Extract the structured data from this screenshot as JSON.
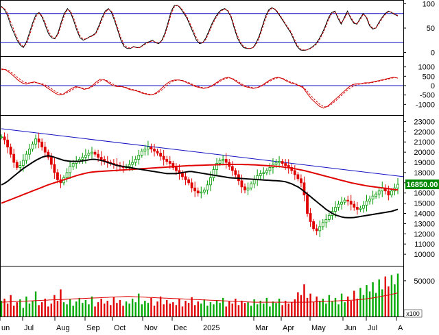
{
  "chart_data": [
    {
      "type": "line",
      "panel": "stochastic-oscillator",
      "ylim": [
        -5,
        105
      ],
      "ticks": [
        "0",
        "50",
        "100"
      ],
      "guide_levels": [
        20,
        80
      ],
      "series": [
        {
          "style": "solid",
          "color": "#000000",
          "values": [
            95,
            88,
            75,
            55,
            40,
            25,
            15,
            10,
            22,
            42,
            62,
            78,
            82,
            72,
            55,
            38,
            30,
            28,
            40,
            62,
            80,
            90,
            82,
            65,
            45,
            30,
            25,
            28,
            32,
            35,
            40,
            55,
            72,
            85,
            90,
            82,
            65,
            45,
            25,
            12,
            8,
            8,
            12,
            10,
            10,
            15,
            20,
            22,
            25,
            20,
            18,
            25,
            40,
            62,
            85,
            97,
            97,
            90,
            80,
            70,
            55,
            40,
            25,
            18,
            20,
            30,
            45,
            60,
            72,
            82,
            88,
            90,
            85,
            72,
            50,
            30,
            18,
            10,
            8,
            8,
            10,
            20,
            35,
            55,
            75,
            88,
            92,
            88,
            80,
            70,
            60,
            50,
            40,
            25,
            12,
            5,
            4,
            5,
            8,
            12,
            18,
            28,
            40,
            55,
            72,
            82,
            85,
            70,
            58,
            72,
            85,
            70,
            60,
            58,
            70,
            80,
            72,
            55,
            48,
            50,
            62,
            72,
            80,
            85,
            82,
            78,
            75
          ]
        },
        {
          "style": "dashed",
          "color": "#d00000",
          "values": [
            93,
            90,
            80,
            62,
            46,
            30,
            18,
            12,
            18,
            36,
            56,
            74,
            81,
            75,
            60,
            43,
            33,
            29,
            36,
            56,
            76,
            88,
            85,
            70,
            50,
            34,
            27,
            28,
            31,
            34,
            38,
            51,
            68,
            82,
            89,
            85,
            70,
            50,
            30,
            16,
            10,
            9,
            11,
            10,
            10,
            14,
            18,
            21,
            24,
            21,
            19,
            23,
            36,
            56,
            80,
            94,
            97,
            92,
            83,
            73,
            59,
            45,
            30,
            21,
            20,
            27,
            41,
            56,
            69,
            79,
            86,
            89,
            86,
            75,
            55,
            35,
            21,
            12,
            9,
            8,
            10,
            17,
            31,
            50,
            70,
            85,
            91,
            89,
            82,
            72,
            62,
            52,
            43,
            29,
            15,
            7,
            5,
            5,
            7,
            11,
            16,
            25,
            37,
            51,
            68,
            80,
            84,
            73,
            61,
            69,
            82,
            73,
            62,
            59,
            67,
            78,
            74,
            58,
            50,
            50,
            59,
            70,
            78,
            84,
            83,
            79,
            76
          ]
        }
      ]
    },
    {
      "type": "line",
      "panel": "macd",
      "ylim": [
        -1500,
        1500
      ],
      "ticks": [
        "1000",
        "500",
        "0",
        "-500",
        "-1000"
      ],
      "guide_levels": [
        0
      ],
      "series": [
        {
          "style": "solid",
          "color": "#d00000",
          "values": [
            900,
            850,
            700,
            500,
            300,
            150,
            80,
            150,
            200,
            120,
            50,
            -100,
            -250,
            -400,
            -500,
            -450,
            -300,
            -150,
            -50,
            -100,
            -200,
            -150,
            0,
            200,
            350,
            300,
            150,
            0,
            -50,
            -50,
            -100,
            -200,
            -250,
            -300,
            -400,
            -450,
            -500,
            -450,
            -300,
            -100,
            100,
            250,
            300,
            300,
            250,
            150,
            50,
            -50,
            -100,
            -150,
            -100,
            0,
            150,
            300,
            400,
            450,
            350,
            200,
            50,
            -50,
            -100,
            -150,
            -100,
            0,
            150,
            300,
            400,
            450,
            380,
            250,
            150,
            100,
            0,
            -100,
            -400,
            -700,
            -900,
            -1100,
            -1200,
            -1100,
            -900,
            -700,
            -500,
            -300,
            -100,
            50,
            100,
            100,
            150,
            150,
            200,
            250,
            300,
            350,
            400,
            450,
            400
          ]
        },
        {
          "style": "dashed",
          "color": "#d00000",
          "values": [
            850,
            860,
            780,
            620,
            420,
            260,
            150,
            140,
            170,
            140,
            90,
            0,
            -150,
            -300,
            -420,
            -460,
            -380,
            -240,
            -110,
            -80,
            -160,
            -170,
            -60,
            100,
            260,
            320,
            220,
            80,
            -10,
            -40,
            -80,
            -160,
            -220,
            -270,
            -350,
            -420,
            -470,
            -470,
            -370,
            -200,
            0,
            170,
            270,
            300,
            270,
            190,
            100,
            0,
            -70,
            -120,
            -110,
            -30,
            100,
            240,
            350,
            420,
            380,
            260,
            110,
            0,
            -70,
            -120,
            -110,
            -30,
            100,
            240,
            350,
            420,
            400,
            300,
            190,
            120,
            30,
            -60,
            -280,
            -550,
            -780,
            -980,
            -1120,
            -1130,
            -980,
            -800,
            -600,
            -400,
            -200,
            -50,
            50,
            90,
            120,
            140,
            170,
            220,
            270,
            320,
            370,
            420,
            420
          ]
        }
      ]
    },
    {
      "type": "candlestick",
      "panel": "price",
      "ylim": [
        9000,
        23500
      ],
      "ticks": [
        "23000",
        "22000",
        "21000",
        "20000",
        "19000",
        "18000",
        "17000",
        "16000",
        "15000",
        "14000",
        "13000",
        "12000",
        "11000",
        "10000"
      ],
      "last_price_label": "16850.00",
      "close": [
        21500,
        21200,
        20500,
        19800,
        19000,
        18500,
        18700,
        19200,
        19800,
        20300,
        20800,
        21300,
        21000,
        20500,
        20000,
        19500,
        18800,
        18000,
        17300,
        17000,
        17500,
        18000,
        18600,
        18900,
        19100,
        19300,
        19500,
        19700,
        19900,
        20000,
        19800,
        19500,
        19300,
        19100,
        19000,
        18900,
        18800,
        18700,
        18600,
        18500,
        18600,
        18800,
        19000,
        19300,
        19700,
        20100,
        20300,
        20500,
        20300,
        20100,
        19900,
        19600,
        19300,
        19100,
        18900,
        18500,
        18200,
        17900,
        17600,
        17300,
        17000,
        16500,
        16200,
        16000,
        16100,
        16300,
        16800,
        17500,
        18300,
        18900,
        19200,
        19300,
        19000,
        18600,
        18200,
        17800,
        17200,
        16600,
        16300,
        16500,
        16900,
        17300,
        17700,
        17900,
        18000,
        18200,
        18500,
        18800,
        19000,
        19100,
        18900,
        18700,
        18500,
        18200,
        17800,
        17400,
        17000,
        15800,
        14000,
        13200,
        12500,
        12300,
        12700,
        13100,
        13400,
        13800,
        14200,
        14600,
        14900,
        15100,
        15300,
        15200,
        14900,
        14600,
        14400,
        14500,
        14800,
        15200,
        15400,
        15700,
        15900,
        16200,
        16500,
        16200,
        15800,
        16200,
        16500,
        16850
      ],
      "ma_long": [
        15000,
        15120,
        15240,
        15360,
        15480,
        15600,
        15720,
        15840,
        15960,
        16080,
        16200,
        16320,
        16440,
        16560,
        16680,
        16800,
        16900,
        17000,
        17100,
        17200,
        17300,
        17400,
        17500,
        17600,
        17700,
        17780,
        17860,
        17940,
        18000,
        18050,
        18080,
        18100,
        18120,
        18140,
        18160,
        18180,
        18200,
        18220,
        18240,
        18260,
        18280,
        18300,
        18320,
        18340,
        18360,
        18380,
        18400,
        18420,
        18440,
        18460,
        18480,
        18500,
        18520,
        18540,
        18560,
        18580,
        18600,
        18620,
        18640,
        18660,
        18680,
        18690,
        18700,
        18710,
        18720,
        18730,
        18740,
        18750,
        18760,
        18770,
        18780,
        18790,
        18800,
        18800,
        18800,
        18800,
        18800,
        18800,
        18790,
        18780,
        18770,
        18760,
        18740,
        18720,
        18700,
        18680,
        18660,
        18640,
        18620,
        18600,
        18560,
        18520,
        18480,
        18440,
        18380,
        18320,
        18260,
        18200,
        18120,
        18040,
        17960,
        17880,
        17800,
        17720,
        17640,
        17560,
        17480,
        17400,
        17320,
        17240,
        17160,
        17080,
        17000,
        16940,
        16880,
        16820,
        16760,
        16700,
        16660,
        16620,
        16580,
        16540,
        16500,
        16460,
        16420,
        16380,
        16340,
        16300
      ],
      "ma_short": [
        16800,
        16950,
        17150,
        17400,
        17650,
        17900,
        18150,
        18400,
        18600,
        18800,
        19000,
        19200,
        19350,
        19500,
        19600,
        19650,
        19600,
        19500,
        19400,
        19300,
        19200,
        19150,
        19100,
        19100,
        19100,
        19100,
        19150,
        19200,
        19250,
        19300,
        19300,
        19250,
        19200,
        19100,
        19000,
        18900,
        18800,
        18700,
        18650,
        18600,
        18550,
        18500,
        18450,
        18400,
        18350,
        18300,
        18250,
        18200,
        18150,
        18100,
        18050,
        18000,
        17950,
        17900,
        17900,
        17900,
        17900,
        17950,
        18000,
        18050,
        18100,
        18100,
        18050,
        18000,
        17950,
        17900,
        17850,
        17800,
        17750,
        17700,
        17650,
        17600,
        17550,
        17500,
        17480,
        17460,
        17440,
        17420,
        17400,
        17380,
        17360,
        17340,
        17320,
        17300,
        17280,
        17260,
        17240,
        17220,
        17200,
        17180,
        17150,
        17100,
        17000,
        16900,
        16750,
        16600,
        16400,
        16150,
        15900,
        15650,
        15400,
        15150,
        14900,
        14650,
        14400,
        14200,
        14000,
        13850,
        13750,
        13650,
        13600,
        13580,
        13580,
        13600,
        13650,
        13700,
        13750,
        13800,
        13850,
        13900,
        13950,
        14000,
        14050,
        14100,
        14150,
        14200,
        14300,
        14400
      ],
      "trendline": {
        "from": 22300,
        "to": 17600
      }
    },
    {
      "type": "bar",
      "panel": "volume",
      "ylim": [
        0,
        70000
      ],
      "ticks": [
        "50000"
      ],
      "unit_label": "x100",
      "x_labels": [
        "un",
        "Jul",
        "Aug",
        "Sep",
        "Oct",
        "Nov",
        "Dec",
        "2025",
        "Mar",
        "Apr",
        "May",
        "Jun",
        "Jul",
        "A"
      ],
      "values": [
        22000,
        25000,
        18000,
        30000,
        15000,
        20000,
        24000,
        12000,
        28000,
        18000,
        22000,
        35000,
        16000,
        20000,
        25000,
        14000,
        18000,
        30000,
        22000,
        38000,
        20000,
        17000,
        24000,
        15000,
        21000,
        26000,
        19000,
        23000,
        17000,
        28000,
        14000,
        20000,
        25000,
        18000,
        22000,
        16000,
        27000,
        19000,
        23000,
        15000,
        21000,
        18000,
        25000,
        20000,
        32000,
        17000,
        22000,
        19000,
        26000,
        15000,
        21000,
        28000,
        17000,
        23000,
        18000,
        20000,
        16000,
        25000,
        14000,
        22000,
        19000,
        27000,
        16000,
        21000,
        18000,
        24000,
        15000,
        20000,
        17000,
        23000,
        19000,
        26000,
        14000,
        21000,
        18000,
        25000,
        16000,
        22000,
        19000,
        20000,
        15000,
        24000,
        17000,
        22000,
        18000,
        26000,
        14000,
        21000,
        19000,
        25000,
        16000,
        22000,
        18000,
        20000,
        24000,
        34000,
        30000,
        45000,
        26000,
        32000,
        20000,
        28000,
        22000,
        25000,
        18000,
        30000,
        21000,
        26000,
        17000,
        32000,
        20000,
        28000,
        22000,
        36000,
        25000,
        40000,
        30000,
        44000,
        35000,
        48000,
        33000,
        52000,
        38000,
        56000,
        42000,
        58000,
        45000,
        60000
      ],
      "ma": [
        20000,
        20200,
        20400,
        20600,
        20800,
        21000,
        21200,
        21400,
        21600,
        21800,
        22000,
        22200,
        22400,
        22600,
        22800,
        23000,
        23200,
        23400,
        23600,
        23800,
        24000,
        24200,
        24400,
        24600,
        24800,
        25000,
        25200,
        25400,
        25600,
        25800,
        26000,
        26200,
        26400,
        26600,
        26800,
        27000,
        27200,
        27400,
        27600,
        27800,
        28000,
        28000,
        27800,
        27600,
        27400,
        27200,
        27000,
        26800,
        26600,
        26400,
        26200,
        26000,
        25800,
        25600,
        25400,
        25200,
        25000,
        24800,
        24600,
        24400,
        24200,
        24000,
        23800,
        23600,
        23400,
        23200,
        23000,
        22800,
        22600,
        22400,
        22200,
        22000,
        21800,
        21600,
        21400,
        21200,
        21000,
        20800,
        20600,
        20400,
        20200,
        20000,
        20000,
        20000,
        20000,
        20000,
        20000,
        20000,
        20000,
        20000,
        20000,
        20000,
        20000,
        20000,
        20000,
        20000,
        20000,
        20000,
        20000,
        20200,
        20400,
        20600,
        20800,
        21000,
        21200,
        21400,
        21600,
        21800,
        22000,
        22200,
        22400,
        22600,
        22800,
        23000,
        23400,
        23800,
        24200,
        24800,
        25400,
        26000,
        26800,
        27600,
        28400,
        29200,
        30000,
        31000,
        32000,
        33000
      ]
    }
  ]
}
